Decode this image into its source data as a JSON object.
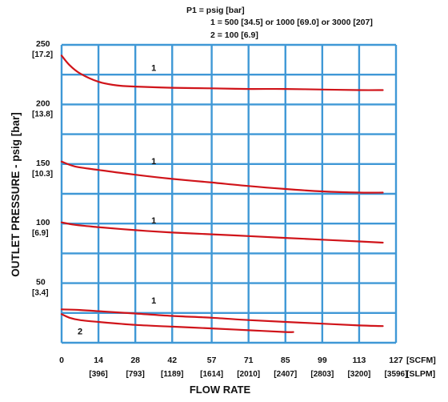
{
  "chart_data": {
    "type": "line",
    "legend_lines": [
      "P1 = psig [bar]",
      "1 = 500 [34.5] or 1000 [69.0] or 3000 [207]",
      "2 = 100 [6.9]"
    ],
    "xlabel": "FLOW RATE",
    "ylabel": "OUTLET PRESSURE - psig [bar]",
    "xlim": [
      0,
      127
    ],
    "ylim": [
      0,
      250
    ],
    "x_ticks": [
      {
        "value": 0,
        "label": "0",
        "label2": ""
      },
      {
        "value": 14,
        "label": "14",
        "label2": "[396]"
      },
      {
        "value": 28,
        "label": "28",
        "label2": "[793]"
      },
      {
        "value": 42,
        "label": "42",
        "label2": "[1189]"
      },
      {
        "value": 57,
        "label": "57",
        "label2": "[1614]"
      },
      {
        "value": 71,
        "label": "71",
        "label2": "[2010]"
      },
      {
        "value": 85,
        "label": "85",
        "label2": "[2407]"
      },
      {
        "value": 99,
        "label": "99",
        "label2": "[2803]"
      },
      {
        "value": 113,
        "label": "113",
        "label2": "[3200]"
      },
      {
        "value": 127,
        "label": "127",
        "label2": "[3596]"
      }
    ],
    "x_units": [
      "[SCFM]",
      "[SLPM]"
    ],
    "y_ticks": [
      {
        "value": 50,
        "label": "50",
        "label2": "[3.4]"
      },
      {
        "value": 100,
        "label": "100",
        "label2": "[6.9]"
      },
      {
        "value": 150,
        "label": "150",
        "label2": "[10.3]"
      },
      {
        "value": 200,
        "label": "200",
        "label2": "[13.8]"
      },
      {
        "value": 250,
        "label": "250",
        "label2": "[17.2]"
      }
    ],
    "grid": true,
    "colors": {
      "curve": "#d0141a",
      "grid": "#3f98d6"
    },
    "series": [
      {
        "name": "1",
        "label_at": [
          35,
          228
        ],
        "x": [
          0,
          3,
          7,
          14,
          21,
          28,
          42,
          57,
          71,
          85,
          99,
          113,
          122
        ],
        "y": [
          241,
          233,
          226,
          219,
          216,
          215,
          214,
          213.5,
          213,
          213,
          212.5,
          212,
          212
        ]
      },
      {
        "name": "1",
        "label_at": [
          35,
          150
        ],
        "x": [
          0,
          5,
          14,
          28,
          42,
          57,
          71,
          85,
          99,
          113,
          122
        ],
        "y": [
          152,
          148,
          145,
          141,
          137.5,
          134.5,
          131.5,
          129,
          127,
          126,
          126
        ]
      },
      {
        "name": "1",
        "label_at": [
          35,
          100
        ],
        "x": [
          0,
          5,
          14,
          28,
          42,
          57,
          71,
          85,
          99,
          113,
          122
        ],
        "y": [
          101,
          99,
          97,
          94.5,
          92.5,
          91,
          89.5,
          88,
          86.5,
          85,
          84
        ]
      },
      {
        "name": "1",
        "label_at": [
          35,
          33
        ],
        "x": [
          0,
          7,
          14,
          28,
          42,
          57,
          71,
          85,
          99,
          113,
          122
        ],
        "y": [
          28,
          27.5,
          26.5,
          24.5,
          22.5,
          21,
          19,
          17.5,
          16,
          14.5,
          14
        ]
      },
      {
        "name": "2",
        "label_at": [
          7,
          7
        ],
        "x": [
          0,
          3,
          7,
          14,
          28,
          42,
          57,
          71,
          85,
          88
        ],
        "y": [
          24,
          21,
          19,
          17.5,
          15,
          13.5,
          12,
          10.5,
          9,
          9
        ]
      }
    ]
  }
}
